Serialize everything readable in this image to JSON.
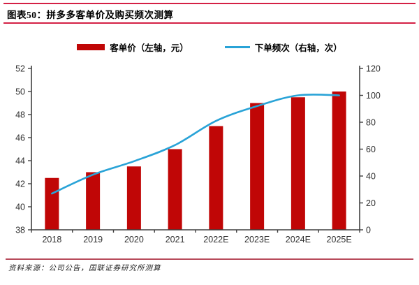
{
  "header": {
    "title": "图表50：拼多多客单价及购买频次测算"
  },
  "footer": {
    "source": "资料来源：公司公告，国联证券研究所测算"
  },
  "colors": {
    "bar": "#c00606",
    "line": "#29a3d7",
    "axis": "#404040",
    "header_rule": "#d42045",
    "footer_rule": "#b84b5c"
  },
  "chart_data": {
    "type": "bar",
    "subtype": "bar-line-combo",
    "categories": [
      "2018",
      "2019",
      "2020",
      "2021",
      "2022E",
      "2023E",
      "2024E",
      "2025E"
    ],
    "series": [
      {
        "name": "客单价（左轴，元）",
        "type": "bar",
        "axis": "left",
        "color": "#c00606",
        "values": [
          42.5,
          43,
          43.5,
          45,
          47,
          49,
          49.5,
          50
        ]
      },
      {
        "name": "下单频次（右轴，次）",
        "type": "line",
        "axis": "right",
        "color": "#29a3d7",
        "values": [
          27,
          41,
          51,
          63,
          81,
          92,
          100,
          100
        ]
      }
    ],
    "left_axis": {
      "min": 38,
      "max": 52,
      "step": 2,
      "ticks": [
        38,
        40,
        42,
        44,
        46,
        48,
        50,
        52
      ]
    },
    "right_axis": {
      "min": 0,
      "max": 120,
      "step": 20,
      "ticks": [
        0,
        20,
        40,
        60,
        80,
        100,
        120
      ]
    },
    "grid": false,
    "legend_position": "top"
  }
}
